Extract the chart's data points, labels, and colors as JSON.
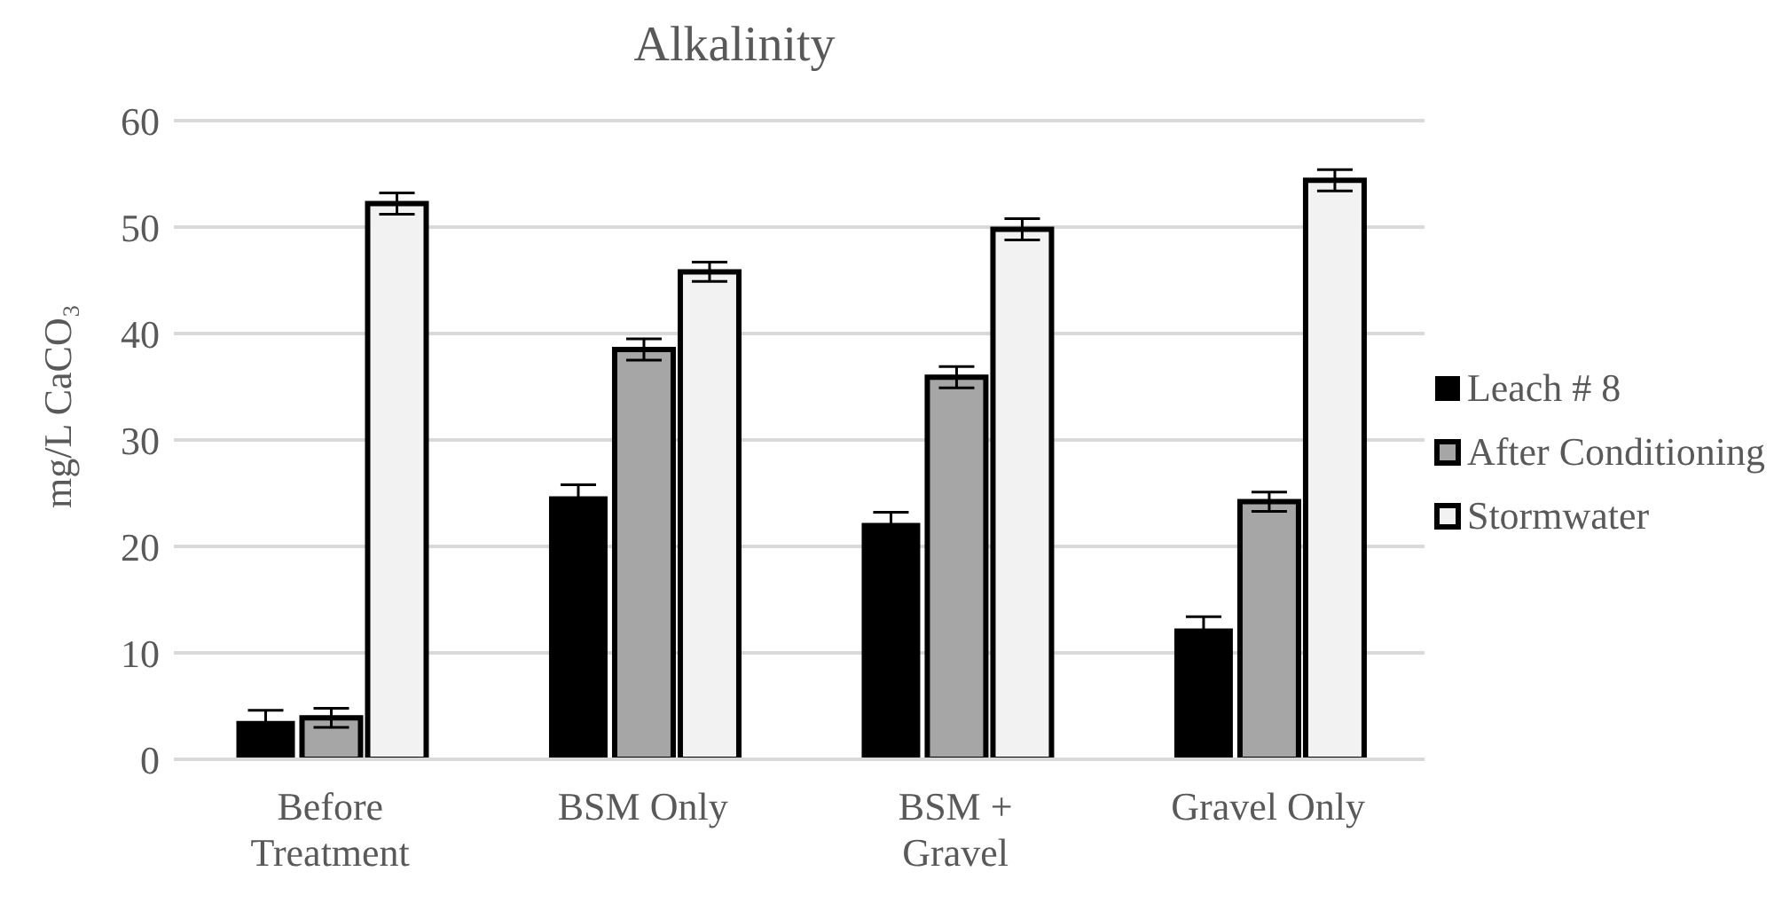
{
  "chart_data": {
    "type": "bar",
    "title": "Alkalinity",
    "ylabel": "mg/L CaCO₃",
    "categories": [
      "Before Treatment",
      "BSM Only",
      "BSM + Gravel",
      "Gravel Only"
    ],
    "series": [
      {
        "name": "Leach # 8",
        "color": "#000000",
        "values": [
          3.6,
          24.7,
          22.2,
          12.3
        ],
        "errors": [
          1,
          1.1,
          1,
          1.1
        ]
      },
      {
        "name": "After Conditioning",
        "color": "#a6a6a6",
        "values": [
          3.9,
          38.5,
          35.9,
          24.2
        ],
        "errors": [
          0.9,
          1,
          1,
          0.9
        ]
      },
      {
        "name": "Stormwater",
        "color": "#f2f2f2",
        "values": [
          52.2,
          45.8,
          49.8,
          54.4
        ],
        "errors": [
          1,
          0.9,
          1,
          1
        ]
      }
    ],
    "ylim": [
      0,
      60
    ],
    "yticks": [
      0,
      10,
      20,
      30,
      40,
      50,
      60
    ],
    "grid": "y",
    "legend": "right"
  }
}
